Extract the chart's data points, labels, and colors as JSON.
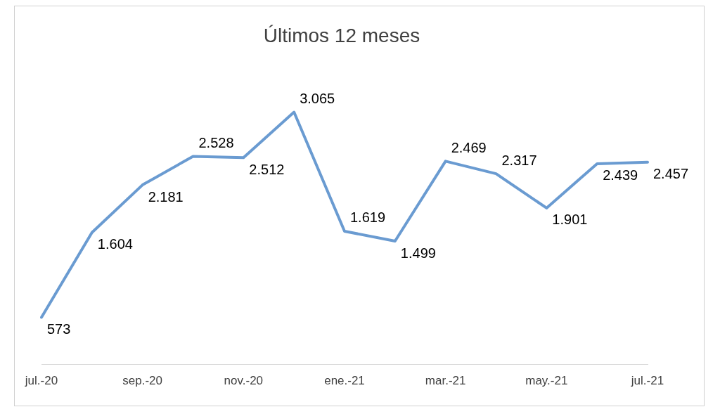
{
  "chart_data": {
    "type": "line",
    "title": "Últimos 12 meses",
    "categories": [
      "jul.-20",
      null,
      "sep.-20",
      null,
      "nov.-20",
      null,
      "ene.-21",
      null,
      "mar.-21",
      null,
      "may.-21",
      null,
      "jul.-21"
    ],
    "series": [
      {
        "color": "#6a9bd1",
        "values": [
          573,
          1604,
          2181,
          2528,
          2512,
          3065,
          1619,
          1499,
          2469,
          2317,
          1901,
          2439,
          2457
        ],
        "value_labels": [
          "573",
          "1.604",
          "2.181",
          "2.528",
          "2.512",
          "3.065",
          "1.619",
          "1.499",
          "2.469",
          "2.317",
          "1.901",
          "2.439",
          "2.457"
        ]
      }
    ],
    "tick_labels": "x",
    "grid": false,
    "legend": false,
    "marker": "none",
    "line_style": "solid"
  }
}
